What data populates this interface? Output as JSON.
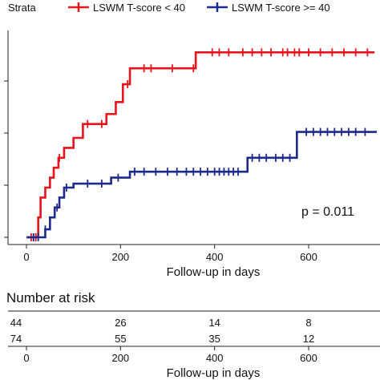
{
  "chart_data": {
    "type": "line",
    "subtype": "kaplan-meier-step",
    "legend_title": "Strata",
    "legend_position": "top",
    "xlabel": "Follow-up in days",
    "xlim": [
      -30,
      760
    ],
    "ylim": [
      0,
      1
    ],
    "x_ticks": [
      0,
      200,
      400,
      600
    ],
    "y_tick_count": 4,
    "grid": false,
    "annotation": "p = 0.011",
    "series": [
      {
        "name": "LSWM T-score < 40",
        "color": "#E8141C",
        "steps": [
          [
            0,
            0
          ],
          [
            20,
            0
          ],
          [
            25,
            0.1
          ],
          [
            30,
            0.2
          ],
          [
            40,
            0.25
          ],
          [
            50,
            0.3
          ],
          [
            58,
            0.35
          ],
          [
            68,
            0.4
          ],
          [
            80,
            0.45
          ],
          [
            100,
            0.5
          ],
          [
            120,
            0.57
          ],
          [
            170,
            0.62
          ],
          [
            190,
            0.68
          ],
          [
            205,
            0.77
          ],
          [
            220,
            0.85
          ],
          [
            360,
            0.93
          ],
          [
            740,
            0.93
          ]
        ],
        "censored": [
          10,
          15,
          20,
          70,
          130,
          160,
          215,
          250,
          265,
          310,
          355,
          395,
          410,
          430,
          460,
          480,
          500,
          520,
          545,
          555,
          570,
          580,
          600,
          625,
          650,
          675,
          700,
          725
        ]
      },
      {
        "name": "LSWM T-score >= 40",
        "color": "#1C2A8C",
        "steps": [
          [
            0,
            0
          ],
          [
            20,
            0
          ],
          [
            40,
            0.04
          ],
          [
            50,
            0.1
          ],
          [
            60,
            0.15
          ],
          [
            70,
            0.2
          ],
          [
            80,
            0.25
          ],
          [
            100,
            0.27
          ],
          [
            180,
            0.3
          ],
          [
            220,
            0.33
          ],
          [
            270,
            0.33
          ],
          [
            470,
            0.4
          ],
          [
            575,
            0.53
          ],
          [
            745,
            0.53
          ]
        ],
        "censored": [
          15,
          25,
          40,
          65,
          85,
          130,
          160,
          195,
          230,
          250,
          275,
          300,
          320,
          340,
          355,
          370,
          385,
          400,
          410,
          420,
          430,
          440,
          450,
          480,
          495,
          510,
          530,
          545,
          560,
          595,
          610,
          625,
          640,
          655,
          670,
          685,
          700,
          720
        ]
      }
    ]
  },
  "risk_table": {
    "title": "Number at risk",
    "x_ticks": [
      0,
      200,
      400,
      600
    ],
    "rows": [
      {
        "values": [
          44,
          26,
          14,
          8
        ],
        "color": "#E8141C"
      },
      {
        "values": [
          74,
          55,
          35,
          12
        ],
        "color": "#1C2A8C"
      }
    ],
    "xlabel": "Follow-up in days"
  }
}
